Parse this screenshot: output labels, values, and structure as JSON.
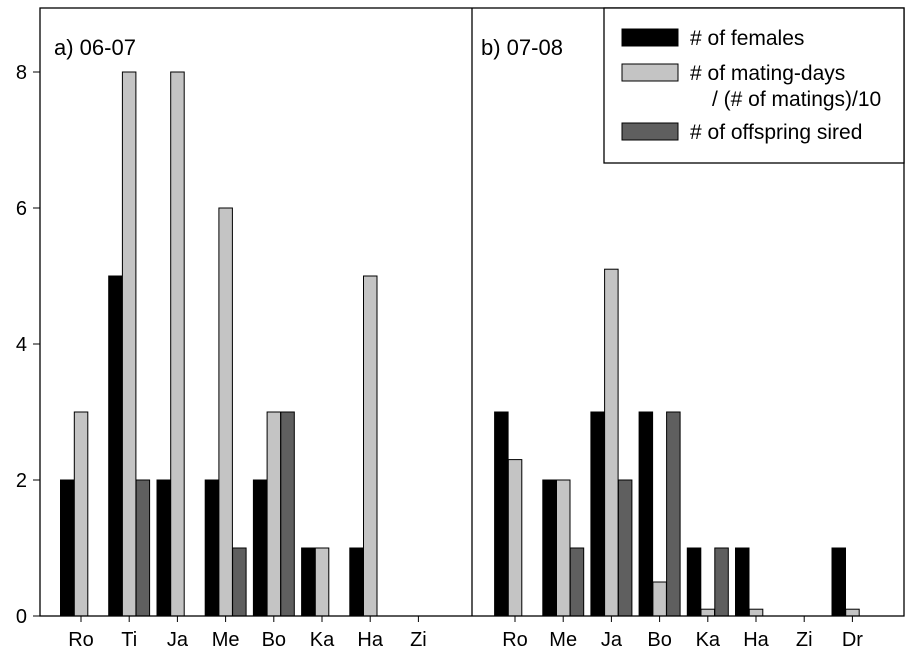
{
  "chart_data": {
    "type": "bar",
    "ylim": [
      0,
      8.8
    ],
    "yticks": [
      0,
      2,
      4,
      6,
      8
    ],
    "legend": {
      "placement": "top-right",
      "entries": [
        {
          "label": "# of females",
          "color": "#000000"
        },
        {
          "label": "# of mating-days",
          "label2": "/ (# of matings)/10",
          "color": "#c4c4c4"
        },
        {
          "label": "# of offspring sired",
          "color": "#5f5f5f"
        }
      ]
    },
    "panels": [
      {
        "label": "a) 06-07",
        "categories": [
          "Ro",
          "Ti",
          "Ja",
          "Me",
          "Bo",
          "Ka",
          "Ha",
          "Zi"
        ],
        "series": [
          {
            "name": "# of females",
            "values": [
              2,
              5,
              2,
              2,
              2,
              1,
              1,
              0
            ]
          },
          {
            "name": "# of mating-days / (# of matings)/10",
            "values": [
              3,
              8,
              8,
              6,
              3,
              1,
              5,
              0
            ]
          },
          {
            "name": "# of offspring sired",
            "values": [
              0,
              2,
              0,
              1,
              3,
              0,
              0,
              0
            ]
          }
        ]
      },
      {
        "label": "b) 07-08",
        "categories": [
          "Ro",
          "Me",
          "Ja",
          "Bo",
          "Ka",
          "Ha",
          "Zi",
          "Dr"
        ],
        "series": [
          {
            "name": "# of females",
            "values": [
              3,
              2,
              3,
              3,
              1,
              1,
              0,
              1
            ]
          },
          {
            "name": "# of mating-days / (# of matings)/10",
            "values": [
              2.3,
              2,
              5.1,
              0.5,
              0.1,
              0.1,
              0,
              0.1
            ]
          },
          {
            "name": "# of offspring sired",
            "values": [
              0,
              1,
              2,
              3,
              1,
              0,
              0,
              0
            ]
          }
        ]
      }
    ]
  }
}
